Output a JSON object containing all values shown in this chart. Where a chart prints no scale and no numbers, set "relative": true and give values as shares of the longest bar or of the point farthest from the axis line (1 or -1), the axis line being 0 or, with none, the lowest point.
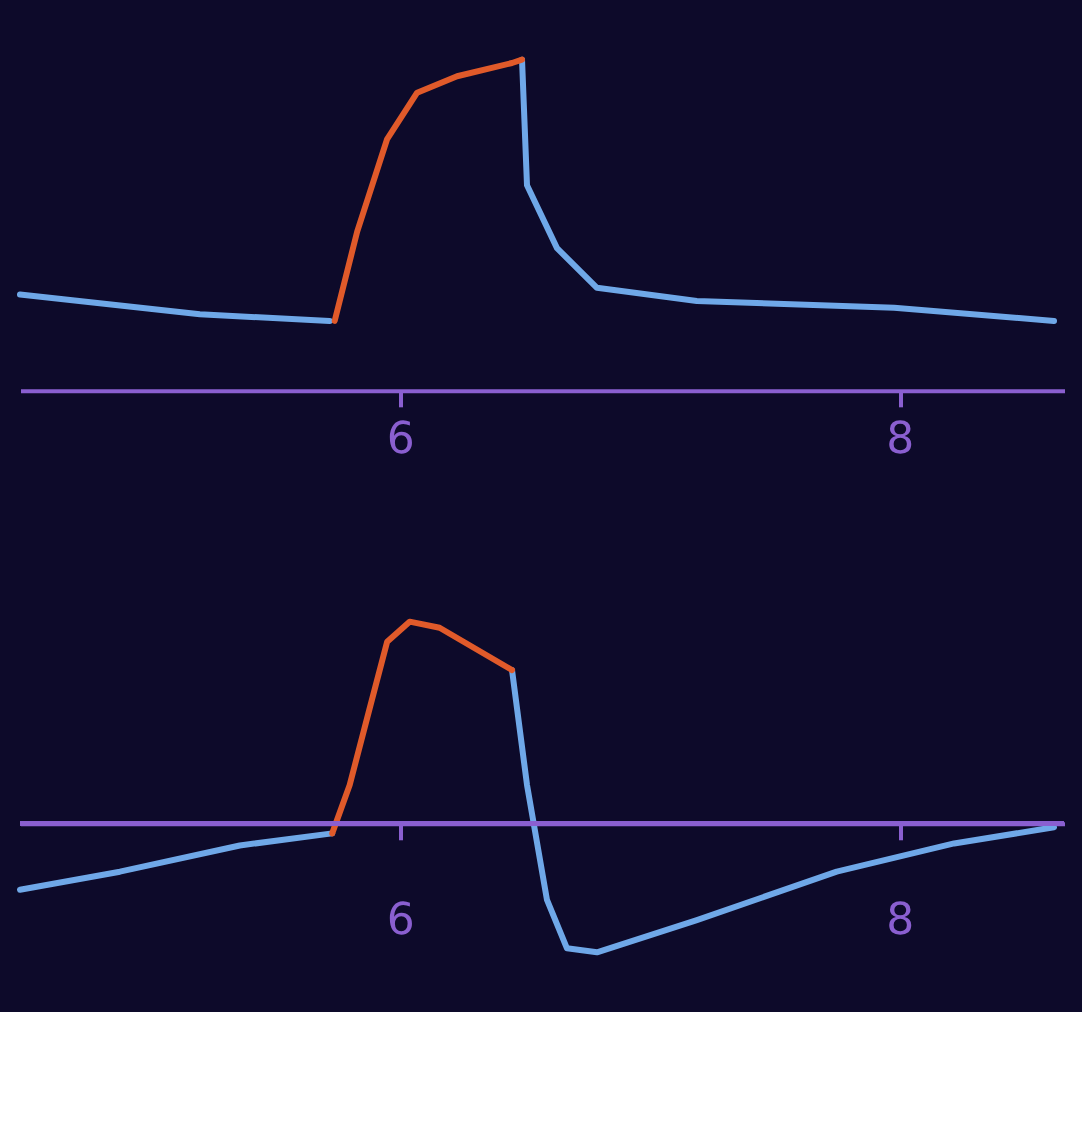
{
  "chart_data": [
    {
      "type": "line",
      "relative": true,
      "xlim": [
        4.48,
        8.66
      ],
      "xticks": [
        6,
        8
      ],
      "grid": false,
      "legend": false,
      "marker": "none",
      "line_style": "solid",
      "series": [
        {
          "color": "#6fa8e8",
          "x": [
            4.48,
            5.2,
            5.72,
            6.1,
            6.49,
            6.51,
            6.63,
            6.79,
            7.19,
            7.98,
            8.62
          ],
          "values": [
            0.29,
            0.23,
            0.21,
            null,
            1.0,
            0.62,
            0.43,
            0.31,
            0.27,
            0.25,
            0.21
          ]
        },
        {
          "color": "#e05a2a",
          "x": [
            5.74,
            5.83,
            5.95,
            6.07,
            6.23,
            6.45,
            6.49
          ],
          "values": [
            0.21,
            0.48,
            0.76,
            0.9,
            0.95,
            0.99,
            1.0
          ]
        }
      ]
    },
    {
      "type": "line",
      "relative": true,
      "xlim": [
        4.48,
        8.66
      ],
      "xticks": [
        6,
        8
      ],
      "grid": false,
      "legend": false,
      "marker": "none",
      "line_style": "solid",
      "ref_lines": [
        {
          "axis": "y",
          "value": 0,
          "color": "#8a5fd0",
          "line_style": "solid"
        }
      ],
      "series": [
        {
          "color": "#6fa8e8",
          "x": [
            4.48,
            4.88,
            5.36,
            5.73,
            6.1,
            6.45,
            6.51,
            6.59,
            6.67,
            6.79,
            7.19,
            7.75,
            8.22,
            8.62
          ],
          "values": [
            -0.33,
            -0.24,
            -0.11,
            -0.05,
            null,
            0.76,
            0.19,
            -0.38,
            -0.62,
            -0.64,
            -0.48,
            -0.24,
            -0.1,
            -0.02
          ]
        },
        {
          "color": "#e05a2a",
          "x": [
            5.73,
            5.8,
            5.88,
            5.95,
            6.04,
            6.16,
            6.45
          ],
          "values": [
            -0.05,
            0.19,
            0.57,
            0.9,
            1.0,
            0.97,
            0.76
          ]
        }
      ]
    }
  ]
}
